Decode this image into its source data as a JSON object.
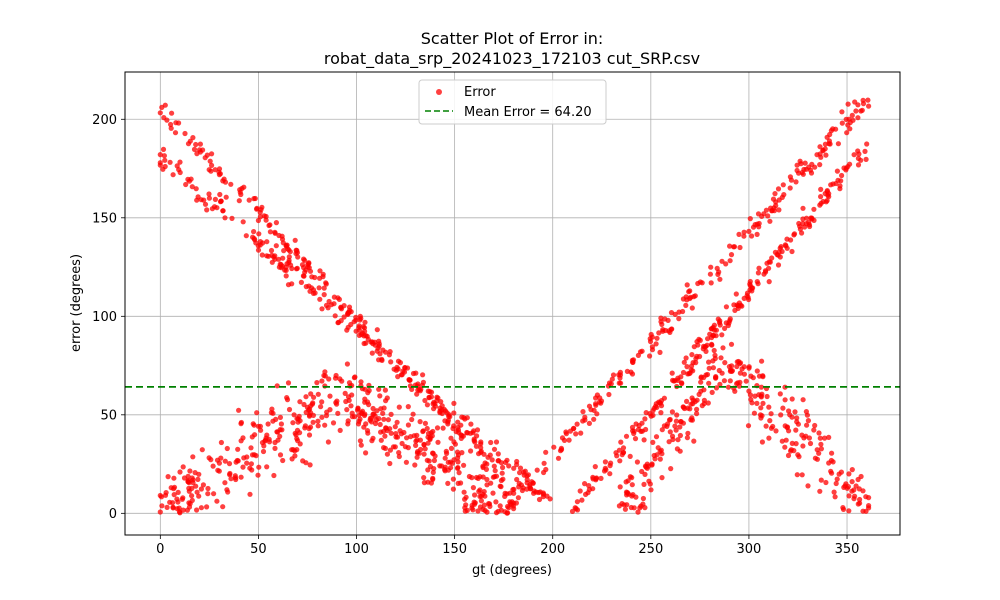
{
  "chart_data": {
    "type": "scatter",
    "title_lines": [
      "Scatter Plot of Error in:",
      "robat_data_srp_20241023_172103 cut_SRP.csv"
    ],
    "xlabel": "gt (degrees)",
    "ylabel": "error (degrees)",
    "xlim": [
      -18,
      377
    ],
    "ylim": [
      -11,
      224
    ],
    "xticks": [
      0,
      50,
      100,
      150,
      200,
      250,
      300,
      350
    ],
    "yticks": [
      0,
      50,
      100,
      150,
      200
    ],
    "grid": true,
    "legend_position": "upper center",
    "series": [
      {
        "name": "Error",
        "type": "scatter",
        "color": "#ff0000",
        "opacity": 0.75,
        "bands": [
          {
            "from": [
              0,
              206
            ],
            "to": [
              175,
              18
            ],
            "count": 190,
            "spread": 4
          },
          {
            "from": [
              0,
              182
            ],
            "to": [
              200,
              4
            ],
            "count": 230,
            "spread": 4
          },
          {
            "from": [
              0,
              2
            ],
            "to": [
              95,
              62
            ],
            "count": 230,
            "spread": 14
          },
          {
            "from": [
              95,
              58
            ],
            "to": [
              180,
              2
            ],
            "count": 260,
            "spread": 14
          },
          {
            "from": [
              175,
              2
            ],
            "to": [
              360,
              210
            ],
            "count": 230,
            "spread": 4
          },
          {
            "from": [
              210,
              2
            ],
            "to": [
              360,
              186
            ],
            "count": 230,
            "spread": 4
          },
          {
            "from": [
              235,
              2
            ],
            "to": [
              285,
              78
            ],
            "count": 130,
            "spread": 12
          },
          {
            "from": [
              285,
              78
            ],
            "to": [
              362,
              4
            ],
            "count": 170,
            "spread": 12
          }
        ]
      },
      {
        "name": "Mean Error = 64.20",
        "type": "hline",
        "y": 64.2,
        "color": "#008000",
        "dash": "dashed"
      }
    ]
  }
}
